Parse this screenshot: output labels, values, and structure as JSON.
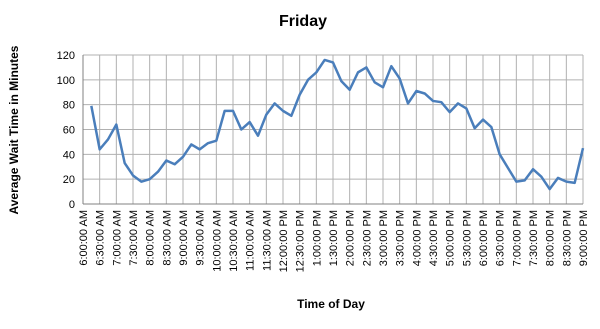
{
  "chart_data": {
    "type": "line",
    "title": "Friday",
    "x_label": "Time of Day",
    "y_label": "Average Wait Time in Minutes",
    "categories": [
      "6:00:00 AM",
      null,
      "6:30:00 AM",
      null,
      "7:00:00 AM",
      null,
      "7:30:00 AM",
      null,
      "8:00:00 AM",
      null,
      "8:30:00 AM",
      null,
      "9:00:00 AM",
      null,
      "9:30:00 AM",
      null,
      "10:00:00 AM",
      null,
      "10:30:00 AM",
      null,
      "11:00:00 AM",
      null,
      "11:30:00 AM",
      null,
      "12:00:00 PM",
      null,
      "12:30:00 PM",
      null,
      "1:00:00 PM",
      null,
      "1:30:00 PM",
      null,
      "2:00:00 PM",
      null,
      "2:30:00 PM",
      null,
      "3:00:00 PM",
      null,
      "3:30:00 PM",
      null,
      "4:00:00 PM",
      null,
      "4:30:00 PM",
      null,
      "5:00:00 PM",
      null,
      "5:30:00 PM",
      null,
      "6:00:00 PM",
      null,
      "6:30:00 PM",
      null,
      "7:00:00 PM",
      null,
      "7:30:00 PM",
      null,
      "8:00:00 PM",
      null,
      "8:30:00 PM",
      null,
      "9:00:00 PM"
    ],
    "values": [
      null,
      79,
      44,
      52,
      64,
      33,
      23,
      18,
      20,
      26,
      35,
      32,
      38,
      48,
      44,
      49,
      51,
      75,
      75,
      60,
      66,
      55,
      72,
      81,
      75,
      71,
      88,
      100,
      106,
      116,
      114,
      99,
      92,
      106,
      110,
      98,
      94,
      111,
      101,
      81,
      91,
      89,
      83,
      82,
      74,
      81,
      77,
      61,
      68,
      62,
      40,
      29,
      18,
      19,
      28,
      22,
      12,
      21,
      18,
      17,
      45
    ],
    "color": "#4a7ebb",
    "ylim": [
      0,
      120
    ],
    "yticks": [
      0,
      20,
      40,
      60,
      80,
      100,
      120
    ],
    "grid": true
  }
}
